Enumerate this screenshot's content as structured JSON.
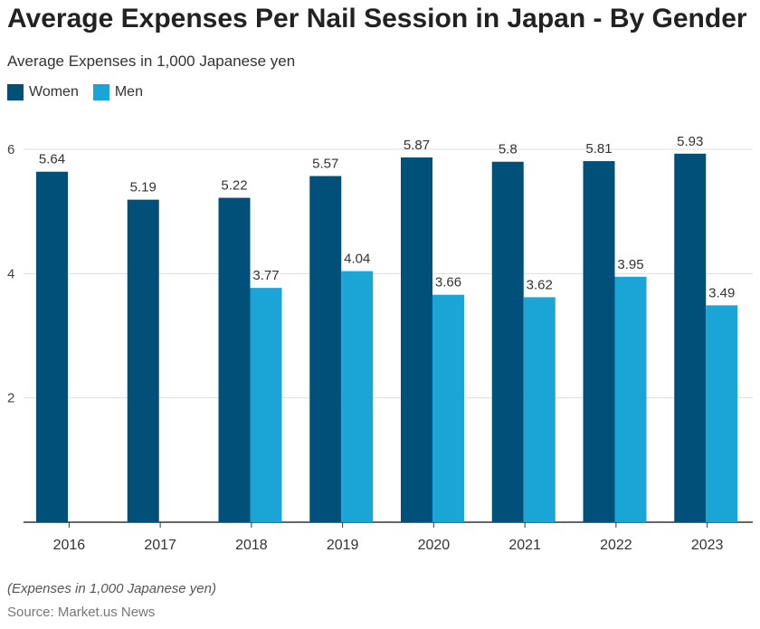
{
  "title": "Average Expenses Per Nail Session in Japan - By Gender",
  "subtitle": "Average Expenses in 1,000 Japanese yen",
  "note": "(Expenses in 1,000 Japanese yen)",
  "source": "Source: Market.us News",
  "colors": {
    "women": "#00507a",
    "men": "#1ba4d6",
    "grid": "#dddddd",
    "axis": "#333333"
  },
  "chart_data": {
    "type": "bar",
    "title": "Average Expenses Per Nail Session in Japan - By Gender",
    "ylabel": "",
    "xlabel": "",
    "categories": [
      "2016",
      "2017",
      "2018",
      "2019",
      "2020",
      "2021",
      "2022",
      "2023"
    ],
    "series": [
      {
        "name": "Women",
        "values": [
          5.64,
          5.19,
          5.22,
          5.57,
          5.87,
          5.8,
          5.81,
          5.93
        ]
      },
      {
        "name": "Men",
        "values": [
          null,
          null,
          3.77,
          4.04,
          3.66,
          3.62,
          3.95,
          3.49
        ]
      }
    ],
    "ylim": [
      0,
      6
    ],
    "yticks": [
      2,
      4,
      6
    ],
    "grid": true,
    "legend": "top-left"
  }
}
